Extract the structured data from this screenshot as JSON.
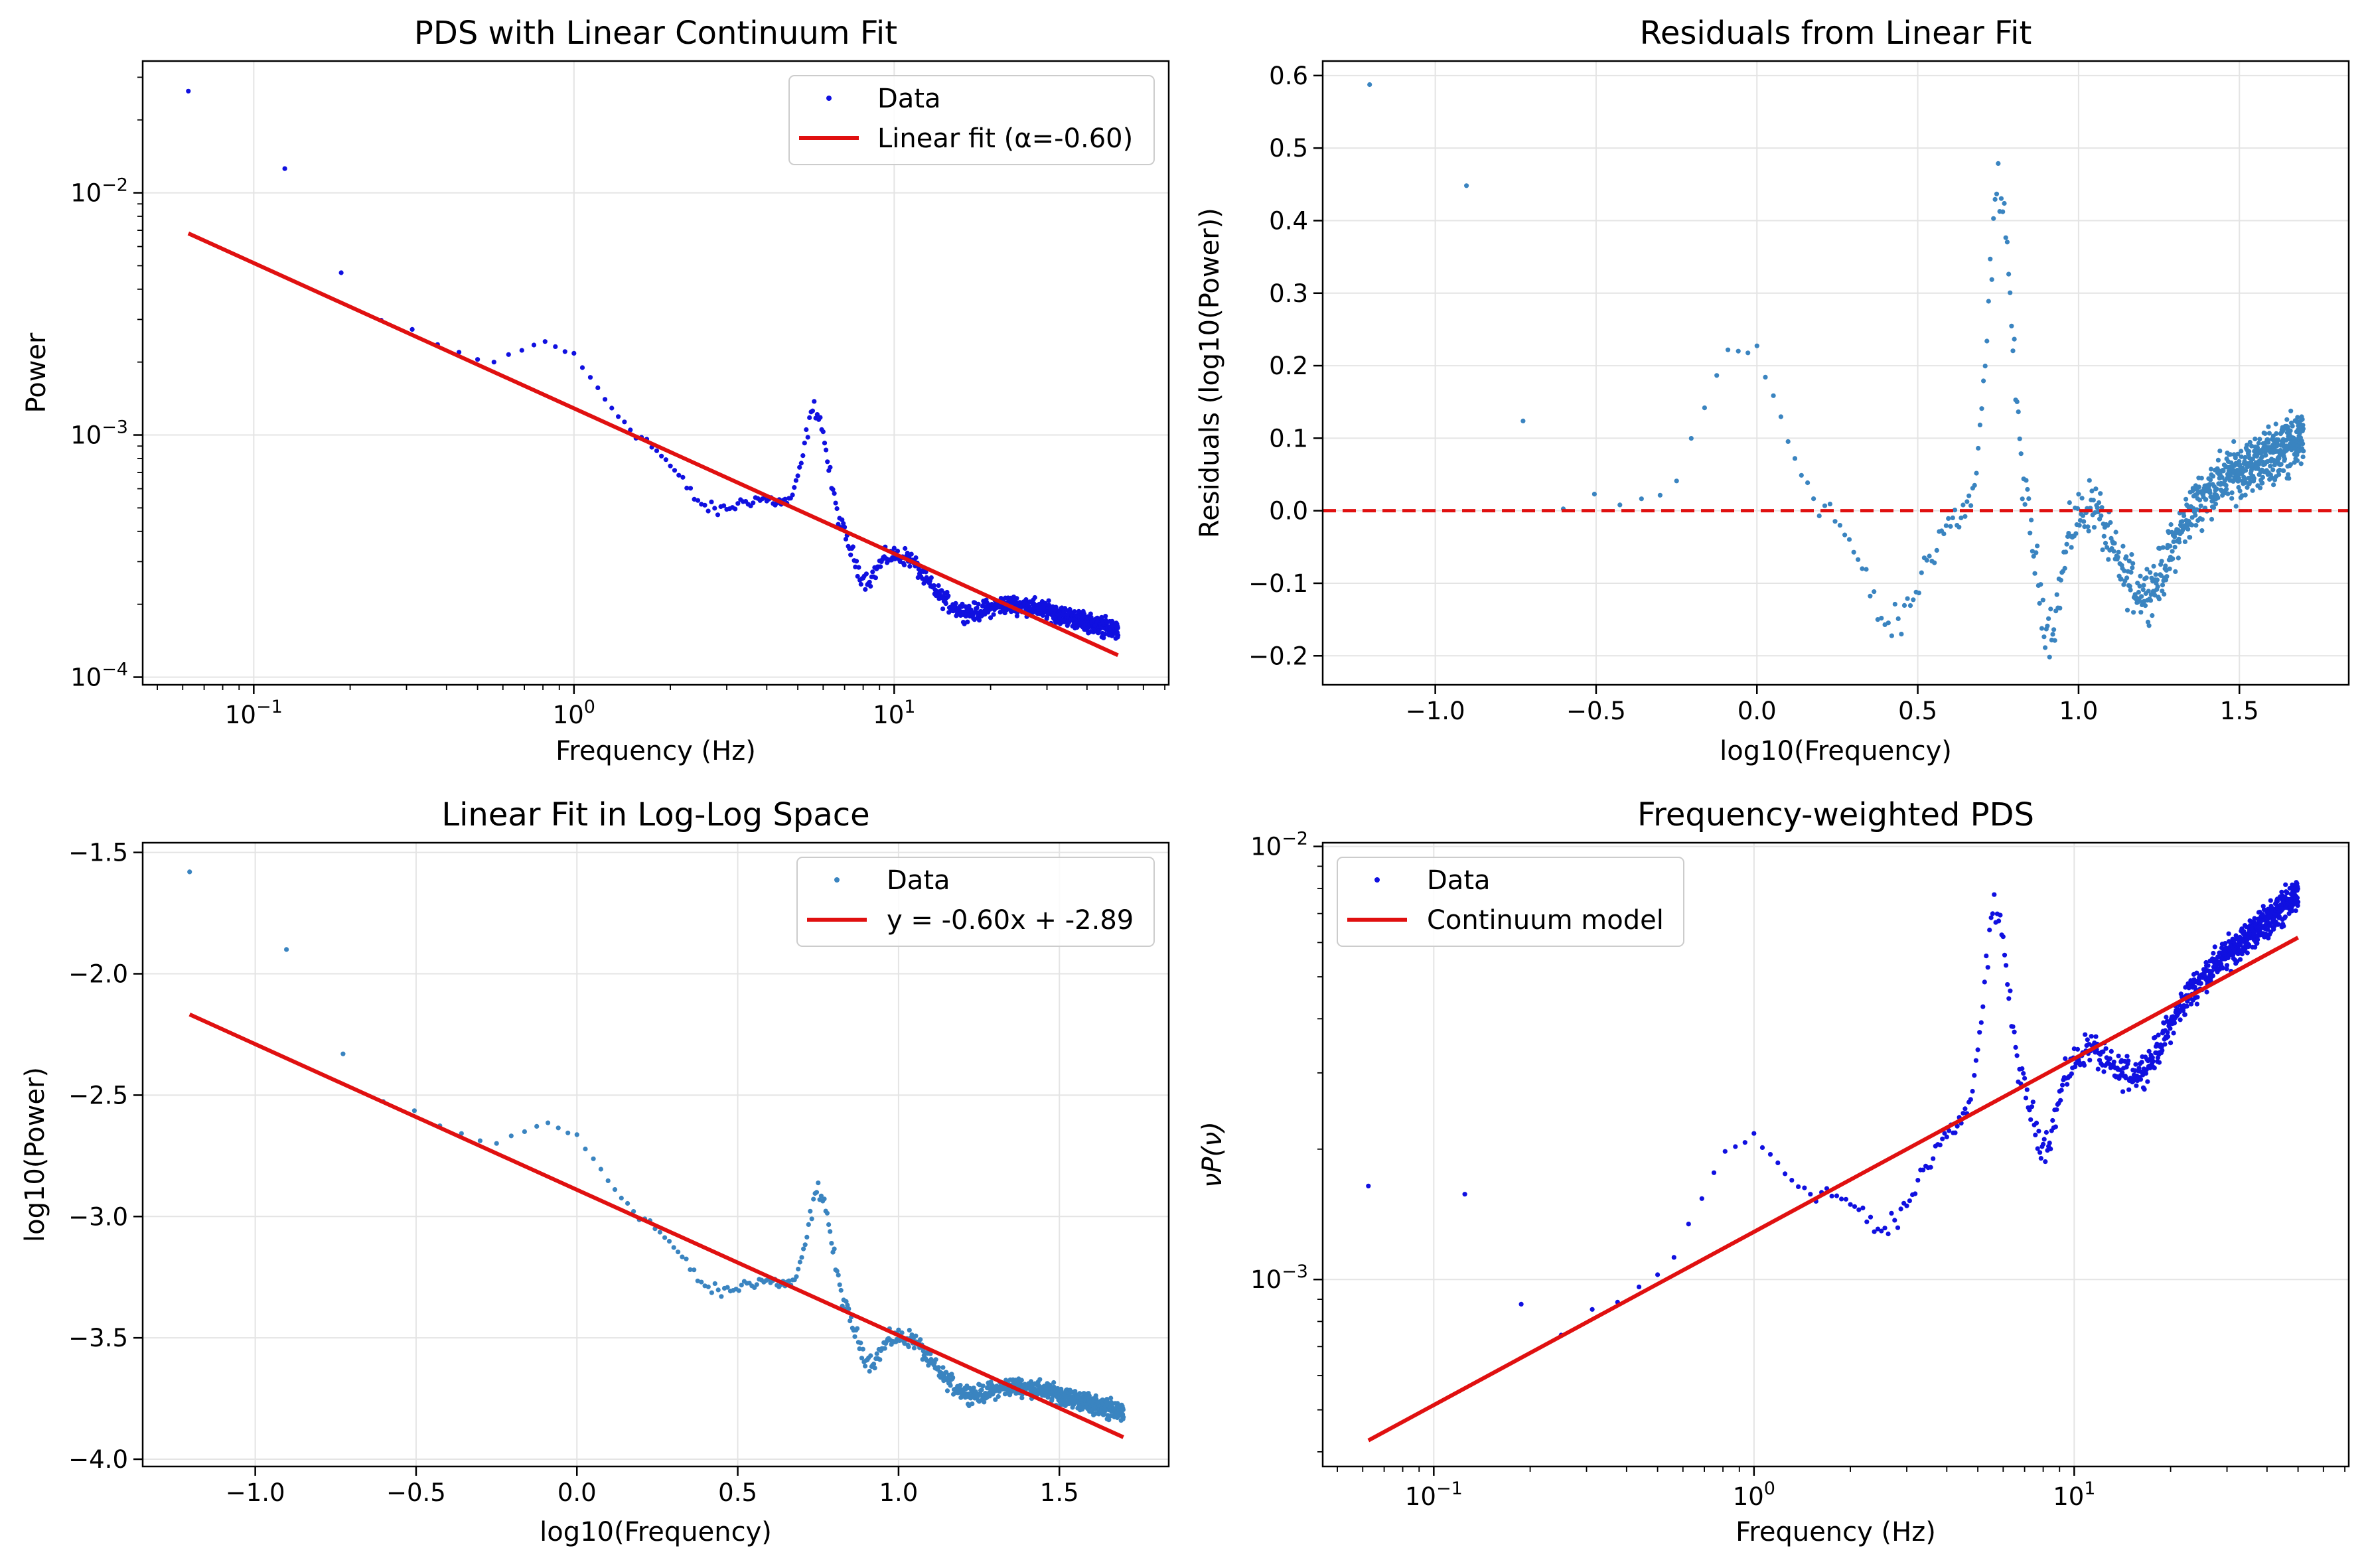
{
  "figure": {
    "chart_data": [
      {
        "type": "scatter",
        "title": "PDS with Linear Continuum Fit",
        "xlabel": "Frequency (Hz)",
        "ylabel": "Power",
        "xscale": "log",
        "yscale": "log",
        "xlim": [
          0.045,
          72
        ],
        "ylim": [
          9.3e-05,
          0.035
        ],
        "xticks": [
          {
            "base": "10",
            "exp": "−1",
            "value": 0.1
          },
          {
            "base": "10",
            "exp": "0",
            "value": 1
          },
          {
            "base": "10",
            "exp": "1",
            "value": 10
          }
        ],
        "yticks": [
          {
            "base": "10",
            "exp": "−4",
            "value": 0.0001
          },
          {
            "base": "10",
            "exp": "−3",
            "value": 0.001
          },
          {
            "base": "10",
            "exp": "−2",
            "value": 0.01
          }
        ],
        "grid": true,
        "legend_position": "upper right",
        "series": [
          {
            "name": "Data",
            "kind": "points",
            "color": "#1010e0"
          },
          {
            "name": "Linear fit (α=-0.60)",
            "kind": "line",
            "color": "#e01010",
            "slope": -0.6,
            "intercept": -2.89
          }
        ]
      },
      {
        "type": "scatter",
        "title": "Residuals from Linear Fit",
        "xlabel": "log10(Frequency)",
        "ylabel": "Residuals (log10(Power))",
        "xscale": "linear",
        "yscale": "linear",
        "xlim": [
          -1.35,
          1.84
        ],
        "ylim": [
          -0.24,
          0.62
        ],
        "xticks": [
          "−1.0",
          "−0.5",
          "0.0",
          "0.5",
          "1.0",
          "1.5"
        ],
        "yticks": [
          "−0.2",
          "−0.1",
          "0.0",
          "0.1",
          "0.2",
          "0.3",
          "0.4",
          "0.5",
          "0.6"
        ],
        "grid": true,
        "reference_line": {
          "y": 0.0,
          "style": "dashed",
          "color": "#e01010"
        },
        "series": [
          {
            "kind": "points",
            "color": "#3a84c0"
          }
        ]
      },
      {
        "type": "scatter",
        "title": "Linear Fit in Log-Log Space",
        "xlabel": "log10(Frequency)",
        "ylabel": "log10(Power)",
        "xscale": "linear",
        "yscale": "linear",
        "xlim": [
          -1.35,
          1.84
        ],
        "ylim": [
          -4.03,
          -1.46
        ],
        "xticks": [
          "−1.0",
          "−0.5",
          "0.0",
          "0.5",
          "1.0",
          "1.5"
        ],
        "yticks": [
          "−4.0",
          "−3.5",
          "−3.0",
          "−2.5",
          "−2.0",
          "−1.5"
        ],
        "grid": true,
        "legend_position": "upper right",
        "series": [
          {
            "name": "Data",
            "kind": "points",
            "color": "#3a84c0"
          },
          {
            "name": "y = -0.60x + -2.89",
            "kind": "line",
            "color": "#e01010",
            "slope": -0.6,
            "intercept": -2.89
          }
        ]
      },
      {
        "type": "scatter",
        "title": "Frequency-weighted PDS",
        "xlabel": "Frequency (Hz)",
        "ylabel": "νP(ν)",
        "xscale": "log",
        "yscale": "log",
        "xlim": [
          0.045,
          72
        ],
        "ylim": [
          0.00037,
          0.0102
        ],
        "xticks": [
          {
            "base": "10",
            "exp": "−1",
            "value": 0.1
          },
          {
            "base": "10",
            "exp": "0",
            "value": 1
          },
          {
            "base": "10",
            "exp": "1",
            "value": 10
          }
        ],
        "yticks": [
          {
            "base": "10",
            "exp": "−3",
            "value": 0.001
          },
          {
            "base": "10",
            "exp": "−2",
            "value": 0.01
          }
        ],
        "grid": true,
        "legend_position": "upper left",
        "series": [
          {
            "name": "Data",
            "kind": "points",
            "color": "#1010e0"
          },
          {
            "name": "Continuum model",
            "kind": "line",
            "color": "#e01010",
            "slope": 0.4,
            "intercept": -2.89
          }
        ]
      }
    ]
  }
}
